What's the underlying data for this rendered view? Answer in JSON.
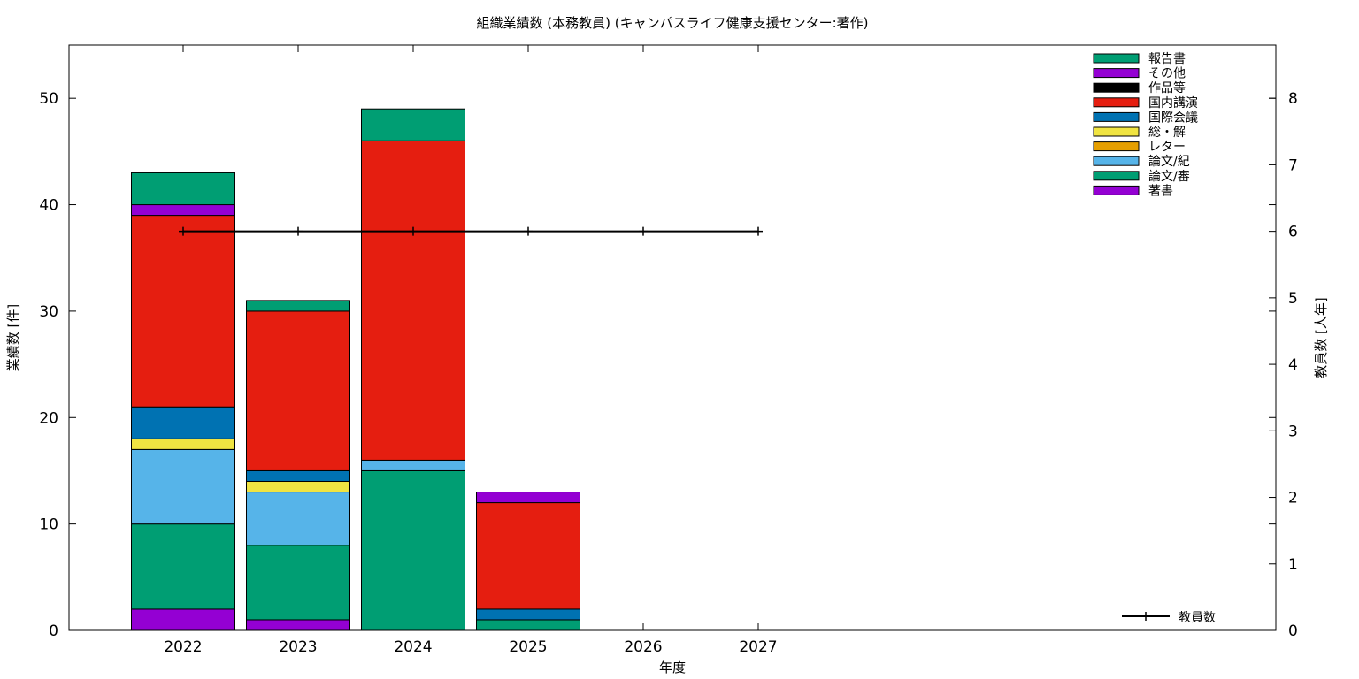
{
  "chart_data": {
    "type": "bar",
    "stacked": true,
    "title": "組織業績数 (本務教員) (キャンパスライフ健康支援センター:著作)",
    "xlabel": "年度",
    "ylabel": "業績数 [件]",
    "y2label": "教員数 [人年]",
    "categories": [
      "2022",
      "2023",
      "2024",
      "2025",
      "2026",
      "2027"
    ],
    "ylim": [
      0,
      55
    ],
    "y2lim": [
      0,
      8.8
    ],
    "yticks": [
      0,
      10,
      20,
      30,
      40,
      50
    ],
    "y2ticks": [
      0,
      1,
      2,
      3,
      4,
      5,
      6,
      7,
      8
    ],
    "grid": false,
    "legend_position": "top-right",
    "series": [
      {
        "name": "著書",
        "color": "#9400d3",
        "values": [
          2,
          1,
          0,
          0,
          0,
          0
        ]
      },
      {
        "name": "論文/審",
        "color": "#009e73",
        "values": [
          8,
          7,
          15,
          1,
          0,
          0
        ]
      },
      {
        "name": "論文/紀",
        "color": "#56b4e9",
        "values": [
          7,
          5,
          1,
          0,
          0,
          0
        ]
      },
      {
        "name": "レター",
        "color": "#e69f00",
        "values": [
          0,
          0,
          0,
          0,
          0,
          0
        ]
      },
      {
        "name": "総・解",
        "color": "#f0e442",
        "values": [
          1,
          1,
          0,
          0,
          0,
          0
        ]
      },
      {
        "name": "国際会議",
        "color": "#0072b2",
        "values": [
          3,
          1,
          0,
          1,
          0,
          0
        ]
      },
      {
        "name": "国内講演",
        "color": "#e51e10",
        "values": [
          18,
          15,
          30,
          10,
          0,
          0
        ]
      },
      {
        "name": "作品等",
        "color": "#000000",
        "values": [
          0,
          0,
          0,
          0,
          0,
          0
        ]
      },
      {
        "name": "その他",
        "color": "#9400d3",
        "values": [
          1,
          0,
          0,
          1,
          0,
          0
        ]
      },
      {
        "name": "報告書",
        "color": "#009e73",
        "values": [
          3,
          1,
          3,
          0,
          0,
          0
        ]
      }
    ],
    "line_series": {
      "name": "教員数",
      "axis": "y2",
      "color": "#000000",
      "values": [
        6,
        6,
        6,
        6,
        6,
        6
      ]
    }
  }
}
